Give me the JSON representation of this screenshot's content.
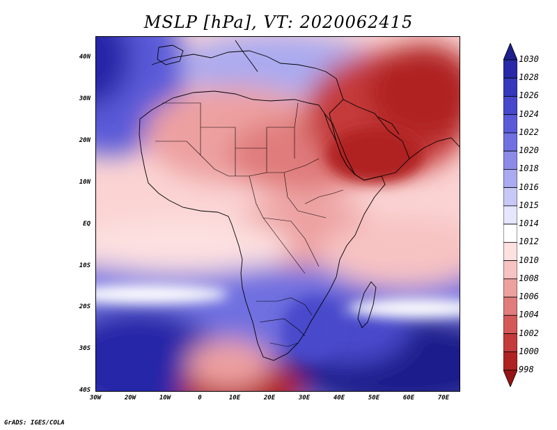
{
  "title": "MSLP [hPa], VT: 2020062415",
  "credit": "GrADS: IGES/COLA",
  "map": {
    "lat_labels": [
      "40N",
      "30N",
      "20N",
      "10N",
      "EQ",
      "10S",
      "20S",
      "30S",
      "40S"
    ],
    "lon_labels": [
      "30W",
      "20W",
      "10W",
      "0",
      "10E",
      "20E",
      "30E",
      "40E",
      "50E",
      "60E",
      "70E"
    ],
    "extent": {
      "lon_min": -30,
      "lon_max": 75,
      "lat_min": -40,
      "lat_max": 45
    }
  },
  "colorbar": {
    "levels": [
      "1030",
      "1028",
      "1026",
      "1024",
      "1022",
      "1020",
      "1018",
      "1016",
      "1015",
      "1014",
      "1012",
      "1010",
      "1008",
      "1006",
      "1004",
      "1002",
      "1000",
      "998"
    ],
    "colors": [
      "#1e1e8c",
      "#2828a8",
      "#3737bd",
      "#4848cc",
      "#5a5ad8",
      "#7070e0",
      "#8c8ce8",
      "#aaaaf0",
      "#c8c8f6",
      "#e6e6fc",
      "#ffffff",
      "#fde0e0",
      "#f7c2c2",
      "#eda0a0",
      "#e07c7c",
      "#d45858",
      "#c53a3a",
      "#b02222",
      "#961414"
    ]
  }
}
